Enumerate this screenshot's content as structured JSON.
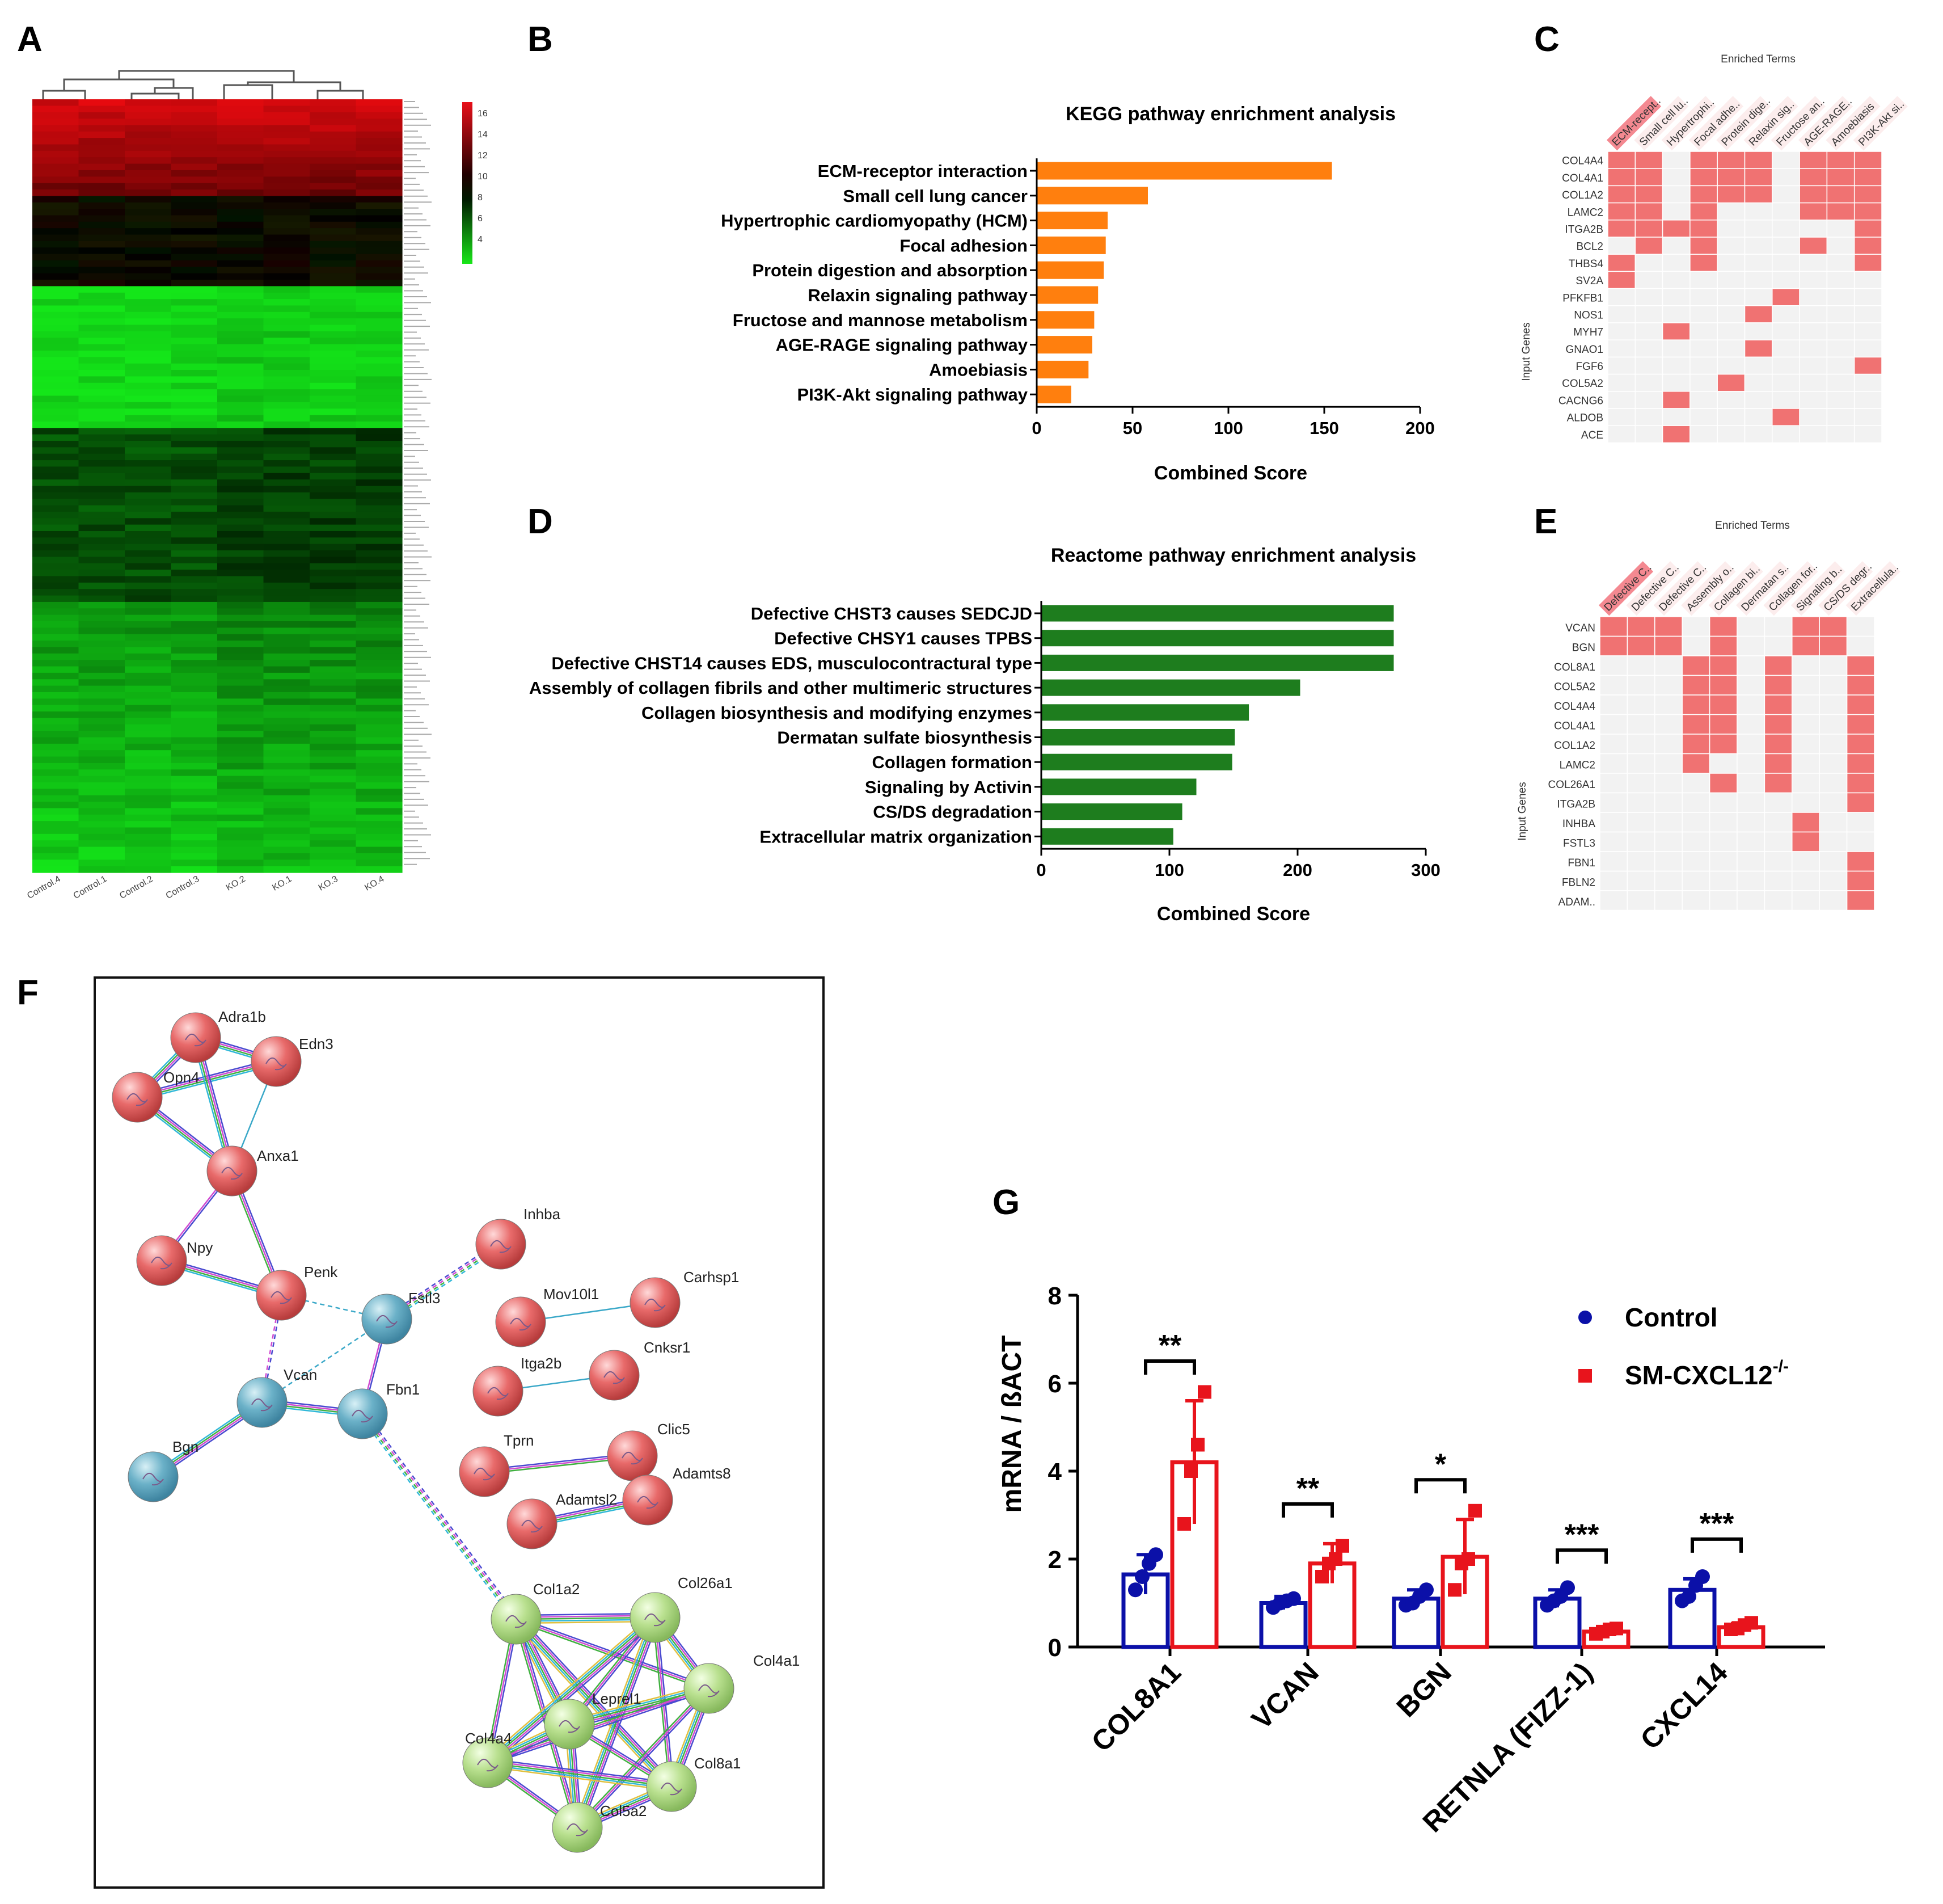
{
  "panel_letters": {
    "A": "A",
    "B": "B",
    "C": "C",
    "D": "D",
    "E": "E",
    "F": "F",
    "G": "G"
  },
  "colors": {
    "orange": "#ff7f0e",
    "green": "#1e7d1e",
    "red": "#e8141c",
    "blue": "#0b10a8",
    "cell_on": "#f07272",
    "cell_off": "#f2f2f2",
    "bar_hi": "#f0626c"
  },
  "heatmap": {
    "samples": [
      "Control.4",
      "Control.1",
      "Control.2",
      "Control.3",
      "KO.2",
      "KO.1",
      "KO.3",
      "KO.4"
    ],
    "legend_ticks": [
      "16",
      "14",
      "12",
      "10",
      "8",
      "6",
      "4"
    ]
  },
  "chart_data": [
    {
      "id": "kegg",
      "type": "bar",
      "orientation": "horizontal",
      "title": "KEGG pathway enrichment analysis",
      "xlabel": "Combined Score",
      "categories": [
        "ECM-receptor interaction",
        "Small cell lung cancer",
        "Hypertrophic cardiomyopathy (HCM)",
        "Focal adhesion",
        "Protein digestion and absorption",
        "Relaxin signaling pathway",
        "Fructose and mannose metabolism",
        "AGE-RAGE signaling pathway",
        "Amoebiasis",
        "PI3K-Akt signaling pathway"
      ],
      "values": [
        154,
        58,
        37,
        36,
        35,
        32,
        30,
        29,
        27,
        18
      ],
      "xlim": [
        0,
        200
      ],
      "xticks": [
        0,
        50,
        100,
        150,
        200
      ]
    },
    {
      "id": "reactome",
      "type": "bar",
      "orientation": "horizontal",
      "title": "Reactome pathway enrichment analysis",
      "xlabel": "Combined Score",
      "categories": [
        "Defective CHST3 causes SEDCJD",
        "Defective CHSY1 causes TPBS",
        "Defective CHST14 causes EDS, musculocontractural type",
        "Assembly of collagen fibrils and other multimeric structures",
        "Collagen biosynthesis and modifying enzymes",
        "Dermatan sulfate biosynthesis",
        "Collagen formation",
        "Signaling by Activin",
        "CS/DS degradation",
        "Extracellular matrix organization"
      ],
      "values": [
        275,
        275,
        275,
        202,
        162,
        151,
        149,
        121,
        110,
        103
      ],
      "xlim": [
        0,
        300
      ],
      "xticks": [
        0,
        100,
        200,
        300
      ]
    },
    {
      "id": "kegg-matrix",
      "type": "heatmap",
      "title": "Enriched Terms",
      "ylabel": "Input Genes",
      "columns": [
        "ECM-recept..",
        "Small cell lu..",
        "Hypertrophi..",
        "Focal adhe..",
        "Protein dige..",
        "Relaxin sig..",
        "Fructose an..",
        "AGE-RAGE..",
        "Amoebiasis",
        "PI3K-Akt si.."
      ],
      "rows": [
        "COL4A4",
        "COL4A1",
        "COL1A2",
        "LAMC2",
        "ITGA2B",
        "BCL2",
        "THBS4",
        "SV2A",
        "PFKFB1",
        "NOS1",
        "MYH7",
        "GNAO1",
        "FGF6",
        "COL5A2",
        "CACNG6",
        "ALDOB",
        "ACE"
      ],
      "matrix": [
        [
          1,
          1,
          0,
          1,
          1,
          1,
          0,
          1,
          1,
          1
        ],
        [
          1,
          1,
          0,
          1,
          1,
          1,
          0,
          1,
          1,
          1
        ],
        [
          1,
          1,
          0,
          1,
          1,
          1,
          0,
          1,
          1,
          1
        ],
        [
          1,
          1,
          0,
          1,
          0,
          0,
          0,
          1,
          1,
          1
        ],
        [
          1,
          1,
          1,
          1,
          0,
          0,
          0,
          0,
          0,
          1
        ],
        [
          0,
          1,
          0,
          1,
          0,
          0,
          0,
          1,
          0,
          1
        ],
        [
          1,
          0,
          0,
          1,
          0,
          0,
          0,
          0,
          0,
          1
        ],
        [
          1,
          0,
          0,
          0,
          0,
          0,
          0,
          0,
          0,
          0
        ],
        [
          0,
          0,
          0,
          0,
          0,
          0,
          1,
          0,
          0,
          0
        ],
        [
          0,
          0,
          0,
          0,
          0,
          1,
          0,
          0,
          0,
          0
        ],
        [
          0,
          0,
          1,
          0,
          0,
          0,
          0,
          0,
          0,
          0
        ],
        [
          0,
          0,
          0,
          0,
          0,
          1,
          0,
          0,
          0,
          0
        ],
        [
          0,
          0,
          0,
          0,
          0,
          0,
          0,
          0,
          0,
          1
        ],
        [
          0,
          0,
          0,
          0,
          1,
          0,
          0,
          0,
          0,
          0
        ],
        [
          0,
          0,
          1,
          0,
          0,
          0,
          0,
          0,
          0,
          0
        ],
        [
          0,
          0,
          0,
          0,
          0,
          0,
          1,
          0,
          0,
          0
        ],
        [
          0,
          0,
          1,
          0,
          0,
          0,
          0,
          0,
          0,
          0
        ]
      ]
    },
    {
      "id": "reactome-matrix",
      "type": "heatmap",
      "title": "Enriched Terms",
      "ylabel": "Input Genes",
      "columns": [
        "Defective C..",
        "Defective C..",
        "Defective C..",
        "Assembly o..",
        "Collagen bi..",
        "Dermatan s..",
        "Collagen for..",
        "Signaling b..",
        "CS/DS degr..",
        "Extracellula.."
      ],
      "rows": [
        "VCAN",
        "BGN",
        "COL8A1",
        "COL5A2",
        "COL4A4",
        "COL4A1",
        "COL1A2",
        "LAMC2",
        "COL26A1",
        "ITGA2B",
        "INHBA",
        "FSTL3",
        "FBN1",
        "FBLN2",
        "ADAM.."
      ],
      "matrix": [
        [
          1,
          1,
          1,
          0,
          1,
          0,
          0,
          1,
          1,
          0
        ],
        [
          1,
          1,
          1,
          0,
          1,
          0,
          0,
          1,
          1,
          0
        ],
        [
          0,
          0,
          0,
          1,
          1,
          0,
          1,
          0,
          0,
          1
        ],
        [
          0,
          0,
          0,
          1,
          1,
          0,
          1,
          0,
          0,
          1
        ],
        [
          0,
          0,
          0,
          1,
          1,
          0,
          1,
          0,
          0,
          1
        ],
        [
          0,
          0,
          0,
          1,
          1,
          0,
          1,
          0,
          0,
          1
        ],
        [
          0,
          0,
          0,
          1,
          1,
          0,
          1,
          0,
          0,
          1
        ],
        [
          0,
          0,
          0,
          1,
          0,
          0,
          1,
          0,
          0,
          1
        ],
        [
          0,
          0,
          0,
          0,
          1,
          0,
          1,
          0,
          0,
          1
        ],
        [
          0,
          0,
          0,
          0,
          0,
          0,
          0,
          0,
          0,
          1
        ],
        [
          0,
          0,
          0,
          0,
          0,
          0,
          0,
          1,
          0,
          0
        ],
        [
          0,
          0,
          0,
          0,
          0,
          0,
          0,
          1,
          0,
          0
        ],
        [
          0,
          0,
          0,
          0,
          0,
          0,
          0,
          0,
          0,
          1
        ],
        [
          0,
          0,
          0,
          0,
          0,
          0,
          0,
          0,
          0,
          1
        ],
        [
          0,
          0,
          0,
          0,
          0,
          0,
          0,
          0,
          0,
          1
        ]
      ]
    },
    {
      "id": "qpcr",
      "type": "bar",
      "title": "",
      "ylabel": "mRNA / ßACT",
      "ylim": [
        0,
        8
      ],
      "yticks": [
        0,
        2,
        4,
        6,
        8
      ],
      "categories": [
        "COL8A1",
        "VCAN",
        "BGN",
        "RETNLA (FIZZ-1)",
        "CXCL14"
      ],
      "series": [
        {
          "name": "Control",
          "values": [
            1.65,
            1.0,
            1.1,
            1.1,
            1.3
          ],
          "errors": [
            0.45,
            0.15,
            0.2,
            0.2,
            0.25
          ],
          "points": [
            [
              1.3,
              1.6,
              1.9,
              2.1
            ],
            [
              0.9,
              1.0,
              1.05,
              1.1
            ],
            [
              0.95,
              1.0,
              1.15,
              1.3
            ],
            [
              0.95,
              1.05,
              1.15,
              1.35
            ],
            [
              1.05,
              1.15,
              1.4,
              1.6
            ]
          ]
        },
        {
          "name": "SM-CXCL12",
          "name_sup": "-/-",
          "values": [
            4.2,
            1.9,
            2.05,
            0.35,
            0.45
          ],
          "errors": [
            1.4,
            0.45,
            0.85,
            0.1,
            0.1
          ],
          "points": [
            [
              2.8,
              4.0,
              4.6,
              5.8
            ],
            [
              1.6,
              1.9,
              2.0,
              2.3
            ],
            [
              1.3,
              1.9,
              2.0,
              3.1
            ],
            [
              0.3,
              0.35,
              0.4,
              0.42
            ],
            [
              0.4,
              0.42,
              0.5,
              0.55
            ]
          ]
        }
      ],
      "significance": [
        "**",
        "**",
        "*",
        "***",
        "***"
      ]
    }
  ],
  "network": {
    "nodes": [
      "Adra1b",
      "Edn3",
      "Opn4",
      "Anxa1",
      "Npy",
      "Penk",
      "Fstl3",
      "Inhba",
      "Vcan",
      "Fbn1",
      "Bgn",
      "Mov10l1",
      "Carhsp1",
      "Itga2b",
      "Cnksr1",
      "Tprn",
      "Clic5",
      "Adamtsl2",
      "Adamts8",
      "Col1a2",
      "Col26a1",
      "Col4a1",
      "Leprel1",
      "Col4a4",
      "Col8a1",
      "Col5a2"
    ]
  }
}
